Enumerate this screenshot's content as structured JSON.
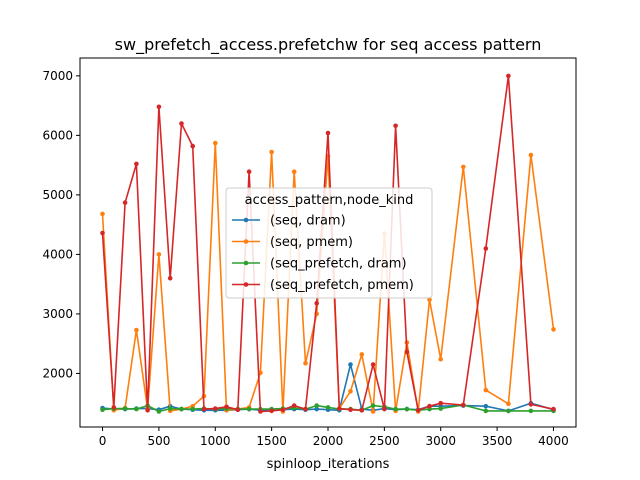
{
  "chart_data": {
    "type": "line",
    "title": "sw_prefetch_access.prefetchw for seq access pattern",
    "xlabel": "spinloop_iterations",
    "ylabel": "",
    "xlim": [
      -200,
      4200
    ],
    "ylim": [
      1100,
      7300
    ],
    "xticks": [
      0,
      500,
      1000,
      1500,
      2000,
      2500,
      3000,
      3500,
      4000
    ],
    "yticks": [
      2000,
      3000,
      4000,
      5000,
      6000,
      7000
    ],
    "legend": {
      "title": "access_pattern,node_kind",
      "placement": "center"
    },
    "grid": false,
    "series": [
      {
        "name": "(seq, dram)",
        "color": "#1f77b4",
        "x": [
          0,
          100,
          200,
          300,
          400,
          500,
          600,
          700,
          800,
          900,
          1000,
          1100,
          1200,
          1300,
          1400,
          1500,
          1600,
          1700,
          1800,
          1900,
          2000,
          2100,
          2200,
          2300,
          2400,
          2500,
          2600,
          2700,
          2800,
          2900,
          3000,
          3200,
          3400,
          3600,
          3800,
          4000
        ],
        "y": [
          1420,
          1400,
          1400,
          1410,
          1410,
          1390,
          1450,
          1400,
          1390,
          1380,
          1380,
          1380,
          1390,
          1400,
          1380,
          1380,
          1390,
          1400,
          1390,
          1400,
          1390,
          1380,
          2150,
          1400,
          1380,
          1410,
          1390,
          1400,
          1390,
          1450,
          1450,
          1460,
          1450,
          1370,
          1500,
          1390
        ]
      },
      {
        "name": "(seq, pmem)",
        "color": "#ff7f0e",
        "x": [
          0,
          100,
          200,
          300,
          400,
          500,
          600,
          700,
          800,
          900,
          1000,
          1100,
          1200,
          1300,
          1400,
          1500,
          1600,
          1700,
          1800,
          1900,
          2000,
          2100,
          2200,
          2300,
          2400,
          2500,
          2600,
          2700,
          2800,
          2900,
          3000,
          3200,
          3400,
          3600,
          3800,
          4000
        ],
        "y": [
          4680,
          1380,
          1420,
          2730,
          1400,
          4000,
          1370,
          1400,
          1450,
          1620,
          5870,
          1380,
          1400,
          1430,
          2010,
          5720,
          1360,
          5390,
          2170,
          3000,
          5650,
          1410,
          1700,
          2320,
          1360,
          4350,
          1370,
          2520,
          1360,
          3240,
          2240,
          5470,
          1720,
          1490,
          5670,
          2740
        ]
      },
      {
        "name": "(seq_prefetch, dram)",
        "color": "#2ca02c",
        "x": [
          0,
          100,
          200,
          300,
          400,
          500,
          600,
          700,
          800,
          900,
          1000,
          1100,
          1200,
          1300,
          1400,
          1500,
          1600,
          1700,
          1800,
          1900,
          2000,
          2100,
          2200,
          2300,
          2400,
          2500,
          2600,
          2700,
          2800,
          2900,
          3000,
          3200,
          3400,
          3600,
          3800,
          4000
        ],
        "y": [
          1390,
          1410,
          1410,
          1400,
          1460,
          1360,
          1410,
          1400,
          1400,
          1410,
          1400,
          1410,
          1400,
          1400,
          1400,
          1400,
          1410,
          1420,
          1400,
          1460,
          1430,
          1400,
          1400,
          1380,
          1460,
          1440,
          1400,
          1400,
          1380,
          1400,
          1410,
          1470,
          1370,
          1370,
          1370,
          1370
        ]
      },
      {
        "name": "(seq_prefetch, pmem)",
        "color": "#d62728",
        "x": [
          0,
          100,
          200,
          300,
          400,
          500,
          600,
          700,
          800,
          900,
          1000,
          1100,
          1200,
          1300,
          1400,
          1500,
          1600,
          1700,
          1800,
          1900,
          2000,
          2100,
          2200,
          2300,
          2400,
          2500,
          2600,
          2700,
          2800,
          2900,
          3000,
          3200,
          3400,
          3600,
          3800,
          4000
        ],
        "y": [
          4360,
          1430,
          4870,
          5520,
          1380,
          6480,
          3600,
          6200,
          5820,
          1400,
          1410,
          1440,
          1390,
          5390,
          1360,
          1370,
          1390,
          1460,
          1400,
          3180,
          6040,
          1410,
          1390,
          1380,
          2150,
          1400,
          6160,
          2360,
          1380,
          1450,
          1500,
          1470,
          4100,
          7000,
          1480,
          1400
        ]
      }
    ]
  }
}
